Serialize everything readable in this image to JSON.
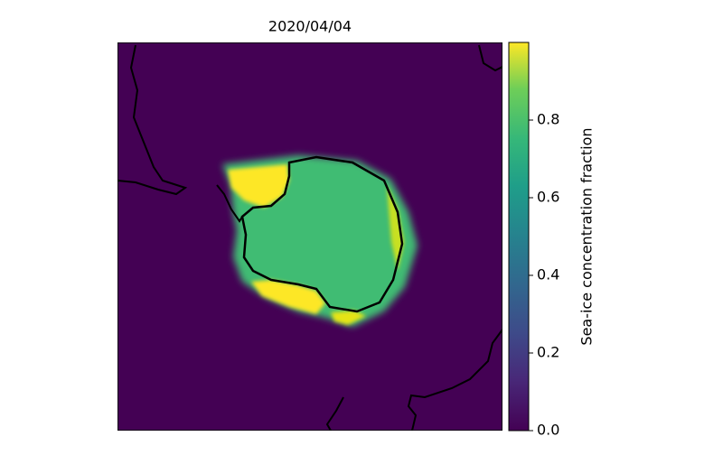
{
  "chart_data": {
    "type": "map",
    "title": "2020/04/04",
    "colorbar_label": "Sea-ice concentration fraction",
    "clim": [
      0,
      1
    ],
    "cticks": [
      {
        "value": 0,
        "label": "0.0"
      },
      0.2,
      0.4,
      0.6,
      0.8
    ]
  }
}
